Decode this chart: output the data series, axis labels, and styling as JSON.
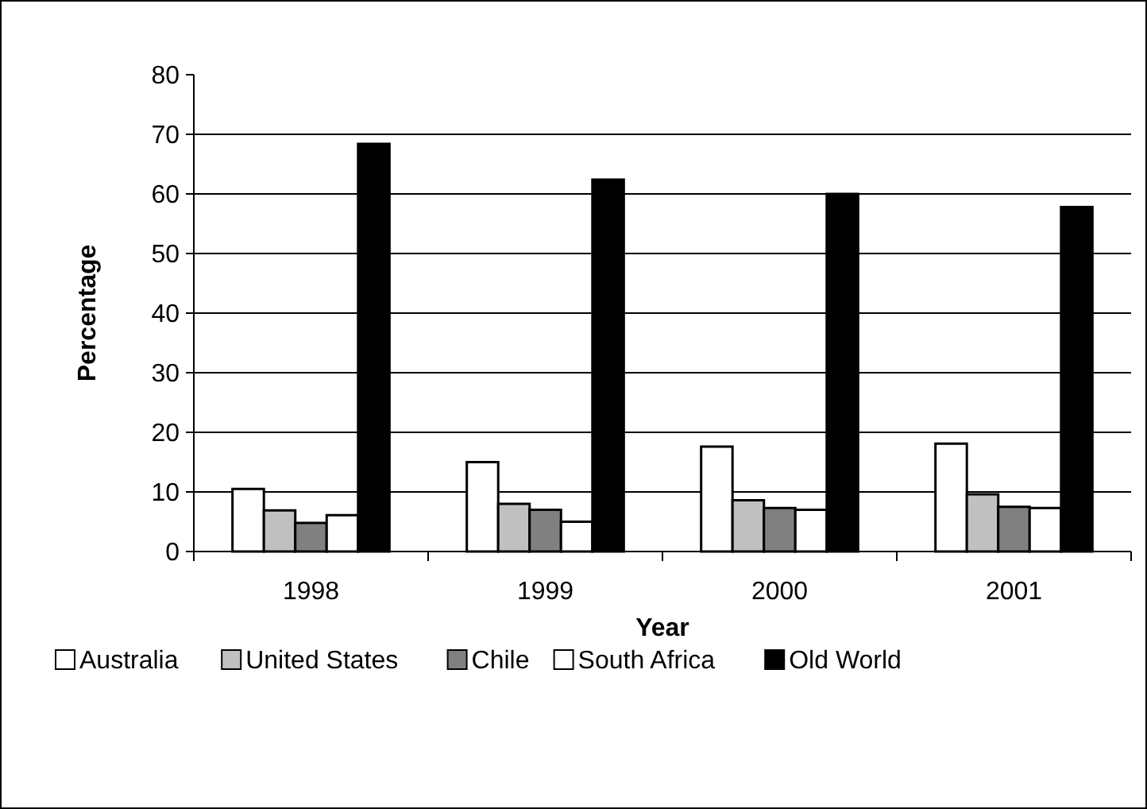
{
  "chart_data": {
    "type": "bar",
    "xlabel": "Year",
    "ylabel": "Percentage",
    "categories": [
      "1998",
      "1999",
      "2000",
      "2001"
    ],
    "series": [
      {
        "name": "Australia",
        "color": "#ffffff",
        "values": [
          10.5,
          15,
          17.6,
          18.1
        ]
      },
      {
        "name": "United States",
        "color": "#c0c0c0",
        "values": [
          6.9,
          8,
          8.6,
          9.6
        ]
      },
      {
        "name": "Chile",
        "color": "#808080",
        "values": [
          4.8,
          7,
          7.3,
          7.5
        ]
      },
      {
        "name": "South Africa",
        "color": "#ffffff",
        "values": [
          6.1,
          5,
          7,
          7.3
        ]
      },
      {
        "name": "Old World",
        "color": "#000000",
        "values": [
          68.4,
          62.4,
          60,
          57.8
        ]
      }
    ],
    "ylim": [
      0,
      80
    ],
    "yticks": [
      0,
      10,
      20,
      30,
      40,
      50,
      60,
      70,
      80
    ],
    "grid": "y",
    "legend": "bottom"
  }
}
